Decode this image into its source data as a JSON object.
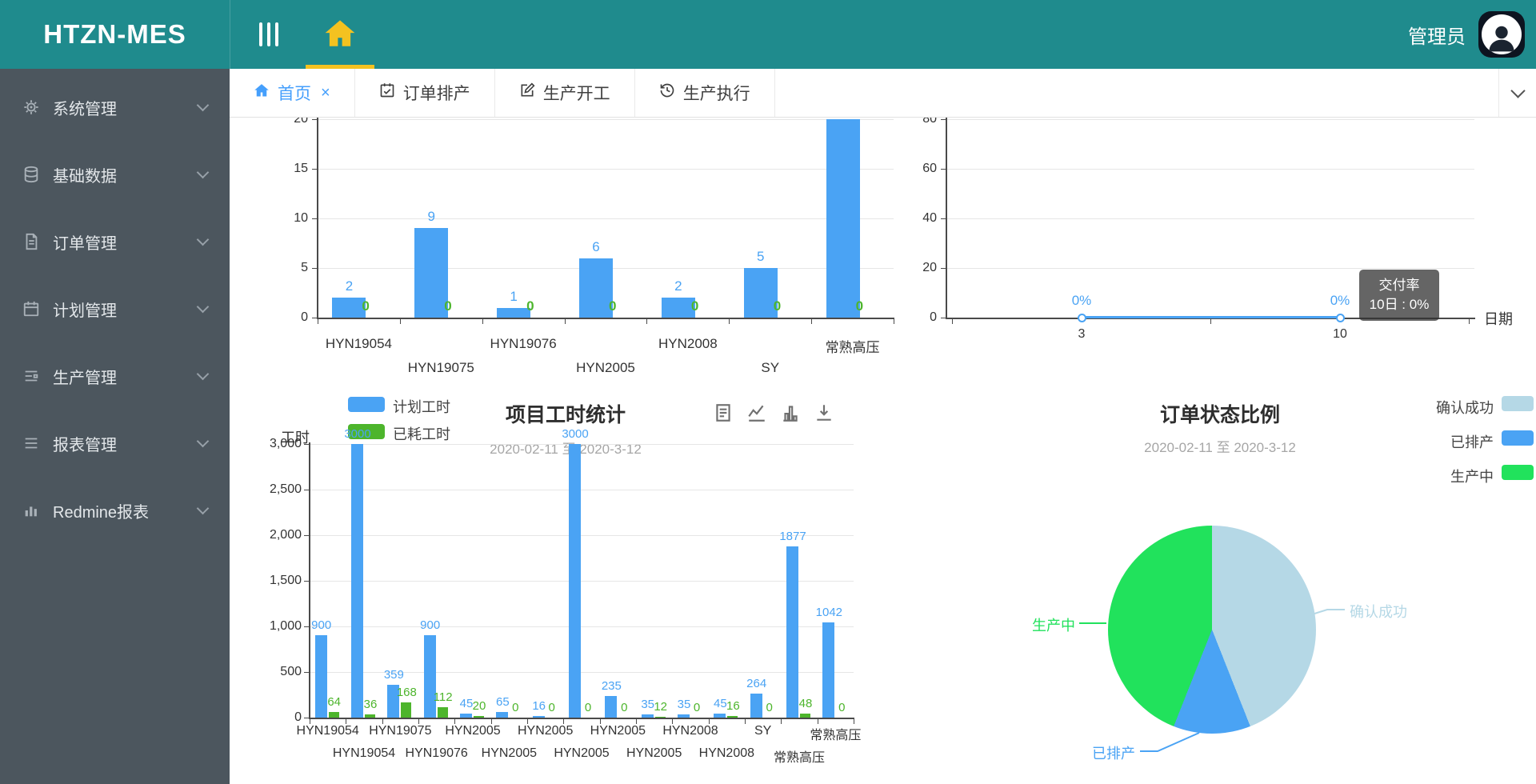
{
  "header": {
    "logo": "HTZN-MES",
    "user": "管理员"
  },
  "sidebar": {
    "items": [
      {
        "icon": "gear-icon",
        "label": "系统管理"
      },
      {
        "icon": "database-icon",
        "label": "基础数据"
      },
      {
        "icon": "document-icon",
        "label": "订单管理"
      },
      {
        "icon": "calendar-icon",
        "label": "计划管理"
      },
      {
        "icon": "production-icon",
        "label": "生产管理"
      },
      {
        "icon": "report-icon",
        "label": "报表管理"
      },
      {
        "icon": "chart-icon",
        "label": "Redmine报表"
      }
    ]
  },
  "tabs": {
    "items": [
      {
        "label": "首页",
        "icon": "home-icon",
        "active": true,
        "closable": true
      },
      {
        "label": "订单排产",
        "icon": "calendar-check-icon",
        "active": false
      },
      {
        "label": "生产开工",
        "icon": "edit-icon",
        "active": false
      },
      {
        "label": "生产执行",
        "icon": "history-icon",
        "active": false
      }
    ],
    "close_glyph": "×"
  },
  "colors": {
    "header_teal": "#1f8b8d",
    "accent_yellow": "#f3c220",
    "sidebar_bg": "#4c565e",
    "active_tab_blue": "#459ffc",
    "bar_blue": "#4aa3f4",
    "bar_green": "#4db52c",
    "pie_lightblue": "#b5d8e6",
    "pie_blue": "#4aa3f4",
    "pie_green": "#21e25c",
    "tooltip_bg": "rgba(50,50,50,0.75)"
  },
  "chart_data": [
    {
      "id": "order-count-bar",
      "type": "bar",
      "categories": [
        "HYN19054",
        "HYN19075",
        "HYN19076",
        "HYN2005",
        "HYN2008",
        "SY",
        "常熟高压"
      ],
      "series": [
        {
          "color": "#4aa3f4",
          "values": [
            2,
            9,
            1,
            6,
            2,
            5,
            20
          ],
          "clipped_top_index": 6
        },
        {
          "color": "#4db52c",
          "values": [
            0,
            0,
            0,
            0,
            0,
            0,
            0
          ]
        }
      ],
      "yticks": [
        0,
        5,
        10,
        15,
        20
      ],
      "ylim": [
        0,
        20
      ],
      "grid": true
    },
    {
      "id": "delivery-rate-line",
      "type": "line",
      "x": [
        "3",
        "10"
      ],
      "values": [
        0,
        0
      ],
      "point_labels": [
        "0%",
        "0%"
      ],
      "xlabel": "日期",
      "yticks": [
        0,
        20,
        40,
        60,
        80
      ],
      "ylim": [
        0,
        80
      ],
      "line_color": "#4aa3f4",
      "grid": true,
      "tooltip": {
        "title": "交付率",
        "value": "10日 : 0%"
      }
    },
    {
      "id": "project-hours-bar",
      "type": "bar",
      "title": "项目工时统计",
      "subtitle": "2020-02-11 至 2020-3-12",
      "ylabel": "工时",
      "categories": [
        "HYN19054",
        "HYN19054",
        "HYN19075",
        "HYN19076",
        "HYN2005",
        "HYN2005",
        "HYN2005",
        "HYN2005",
        "HYN2005",
        "HYN2005",
        "HYN2008",
        "HYN2008",
        "SY",
        "常熟高压",
        "常熟高压"
      ],
      "series": [
        {
          "name": "计划工时",
          "color": "#4aa3f4",
          "values": [
            900,
            3000,
            359,
            900,
            45,
            65,
            16,
            3000,
            235,
            35,
            35,
            45,
            264,
            1877,
            1042
          ]
        },
        {
          "name": "已耗工时",
          "color": "#4db52c",
          "values": [
            64,
            36,
            168,
            112,
            20,
            0,
            0,
            0,
            0,
            12,
            0,
            16,
            0,
            48,
            0
          ]
        }
      ],
      "yticks": [
        "0",
        "500",
        "1,000",
        "1,500",
        "2,000",
        "2,500",
        "3,000"
      ],
      "ylim": [
        0,
        3000
      ],
      "grid": true,
      "legend_position": "top-left",
      "toolbar": [
        "data-view-icon",
        "line-chart-icon",
        "bar-chart-icon",
        "download-icon"
      ]
    },
    {
      "id": "order-status-pie",
      "type": "pie",
      "title": "订单状态比例",
      "subtitle": "2020-02-11 至 2020-3-12",
      "legend": [
        "确认成功",
        "已排产",
        "生产中"
      ],
      "legend_position": "top-right",
      "slices": [
        {
          "name": "确认成功",
          "color": "#b5d8e6",
          "pct": 44
        },
        {
          "name": "已排产",
          "color": "#4aa3f4",
          "pct": 12
        },
        {
          "name": "生产中",
          "color": "#21e25c",
          "pct": 44
        }
      ]
    }
  ]
}
